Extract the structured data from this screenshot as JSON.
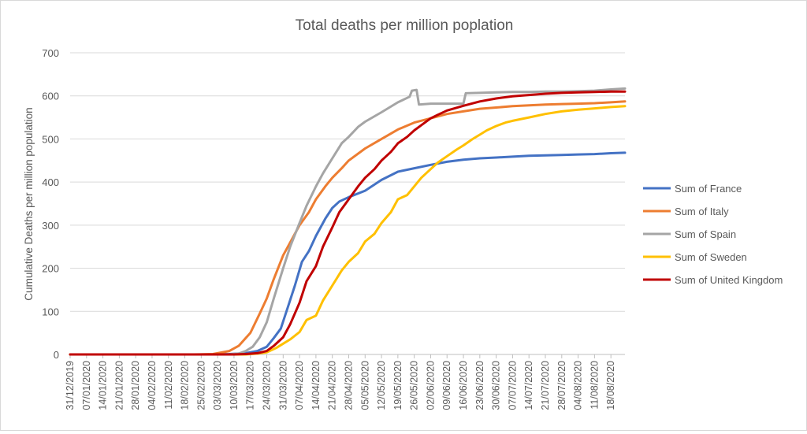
{
  "chart_data": {
    "type": "line",
    "title": "Total deaths per million poplation",
    "xlabel": "",
    "ylabel": "Cumulative Deaths per million population",
    "ylim": [
      0,
      700
    ],
    "yticks": [
      0,
      100,
      200,
      300,
      400,
      500,
      600,
      700
    ],
    "grid": "horizontal",
    "legend_position": "right",
    "x_dates": [
      "31/12/2019",
      "07/01/2020",
      "14/01/2020",
      "21/01/2020",
      "28/01/2020",
      "04/02/2020",
      "11/02/2020",
      "18/02/2020",
      "25/02/2020",
      "03/03/2020",
      "10/03/2020",
      "17/03/2020",
      "24/03/2020",
      "31/03/2020",
      "07/04/2020",
      "14/04/2020",
      "21/04/2020",
      "28/04/2020",
      "05/05/2020",
      "12/05/2020",
      "19/05/2020",
      "26/05/2020",
      "02/06/2020",
      "09/06/2020",
      "16/06/2020",
      "23/06/2020",
      "30/06/2020",
      "07/07/2020",
      "14/07/2020",
      "21/07/2020",
      "28/07/2020",
      "04/08/2020",
      "11/08/2020",
      "18/08/2020"
    ],
    "x_end": "24/08/2020",
    "series": [
      {
        "name": "Sum of France",
        "color": "#4472c4",
        "points": [
          [
            "31/12/2019",
            0
          ],
          [
            "01/03/2020",
            0
          ],
          [
            "08/03/2020",
            1
          ],
          [
            "15/03/2020",
            3
          ],
          [
            "20/03/2020",
            8
          ],
          [
            "24/03/2020",
            18
          ],
          [
            "27/03/2020",
            38
          ],
          [
            "30/03/2020",
            60
          ],
          [
            "02/04/2020",
            110
          ],
          [
            "05/04/2020",
            160
          ],
          [
            "08/04/2020",
            215
          ],
          [
            "11/04/2020",
            240
          ],
          [
            "14/04/2020",
            275
          ],
          [
            "18/04/2020",
            315
          ],
          [
            "21/04/2020",
            340
          ],
          [
            "24/04/2020",
            355
          ],
          [
            "28/04/2020",
            365
          ],
          [
            "05/05/2020",
            380
          ],
          [
            "12/05/2020",
            405
          ],
          [
            "19/05/2020",
            424
          ],
          [
            "26/05/2020",
            432
          ],
          [
            "02/06/2020",
            440
          ],
          [
            "09/06/2020",
            447
          ],
          [
            "16/06/2020",
            452
          ],
          [
            "23/06/2020",
            455
          ],
          [
            "30/06/2020",
            457
          ],
          [
            "07/07/2020",
            459
          ],
          [
            "14/07/2020",
            461
          ],
          [
            "21/07/2020",
            462
          ],
          [
            "28/07/2020",
            463
          ],
          [
            "04/08/2020",
            464
          ],
          [
            "11/08/2020",
            465
          ],
          [
            "18/08/2020",
            467
          ],
          [
            "24/08/2020",
            468
          ]
        ]
      },
      {
        "name": "Sum of Italy",
        "color": "#ed7d31",
        "points": [
          [
            "31/12/2019",
            0
          ],
          [
            "22/02/2020",
            0
          ],
          [
            "01/03/2020",
            1
          ],
          [
            "08/03/2020",
            8
          ],
          [
            "12/03/2020",
            20
          ],
          [
            "17/03/2020",
            50
          ],
          [
            "21/03/2020",
            95
          ],
          [
            "24/03/2020",
            130
          ],
          [
            "27/03/2020",
            175
          ],
          [
            "31/03/2020",
            230
          ],
          [
            "04/04/2020",
            270
          ],
          [
            "07/04/2020",
            300
          ],
          [
            "11/04/2020",
            330
          ],
          [
            "14/04/2020",
            360
          ],
          [
            "18/04/2020",
            390
          ],
          [
            "21/04/2020",
            410
          ],
          [
            "25/04/2020",
            432
          ],
          [
            "28/04/2020",
            450
          ],
          [
            "05/05/2020",
            478
          ],
          [
            "12/05/2020",
            500
          ],
          [
            "19/05/2020",
            522
          ],
          [
            "26/05/2020",
            538
          ],
          [
            "02/06/2020",
            548
          ],
          [
            "09/06/2020",
            558
          ],
          [
            "16/06/2020",
            564
          ],
          [
            "23/06/2020",
            570
          ],
          [
            "30/06/2020",
            573
          ],
          [
            "07/07/2020",
            576
          ],
          [
            "14/07/2020",
            578
          ],
          [
            "21/07/2020",
            580
          ],
          [
            "28/07/2020",
            581
          ],
          [
            "04/08/2020",
            582
          ],
          [
            "11/08/2020",
            583
          ],
          [
            "18/08/2020",
            585
          ],
          [
            "24/08/2020",
            587
          ]
        ]
      },
      {
        "name": "Sum of Spain",
        "color": "#a5a5a5",
        "points": [
          [
            "31/12/2019",
            0
          ],
          [
            "08/03/2020",
            0
          ],
          [
            "12/03/2020",
            2
          ],
          [
            "15/03/2020",
            8
          ],
          [
            "18/03/2020",
            18
          ],
          [
            "21/03/2020",
            40
          ],
          [
            "24/03/2020",
            75
          ],
          [
            "27/03/2020",
            130
          ],
          [
            "31/03/2020",
            200
          ],
          [
            "03/04/2020",
            250
          ],
          [
            "07/04/2020",
            305
          ],
          [
            "10/04/2020",
            345
          ],
          [
            "14/04/2020",
            390
          ],
          [
            "17/04/2020",
            420
          ],
          [
            "21/04/2020",
            455
          ],
          [
            "25/04/2020",
            490
          ],
          [
            "28/04/2020",
            505
          ],
          [
            "02/05/2020",
            528
          ],
          [
            "05/05/2020",
            540
          ],
          [
            "12/05/2020",
            562
          ],
          [
            "19/05/2020",
            585
          ],
          [
            "24/05/2020",
            598
          ],
          [
            "25/05/2020",
            612
          ],
          [
            "27/05/2020",
            614
          ],
          [
            "28/05/2020",
            580
          ],
          [
            "02/06/2020",
            582
          ],
          [
            "09/06/2020",
            582
          ],
          [
            "16/06/2020",
            582
          ],
          [
            "17/06/2020",
            606
          ],
          [
            "23/06/2020",
            607
          ],
          [
            "30/06/2020",
            608
          ],
          [
            "07/07/2020",
            609
          ],
          [
            "14/07/2020",
            609
          ],
          [
            "21/07/2020",
            610
          ],
          [
            "28/07/2020",
            610
          ],
          [
            "04/08/2020",
            611
          ],
          [
            "11/08/2020",
            612
          ],
          [
            "18/08/2020",
            615
          ],
          [
            "24/08/2020",
            617
          ]
        ]
      },
      {
        "name": "Sum of Sweden",
        "color": "#ffc000",
        "points": [
          [
            "31/12/2019",
            0
          ],
          [
            "15/03/2020",
            0
          ],
          [
            "20/03/2020",
            2
          ],
          [
            "24/03/2020",
            5
          ],
          [
            "28/03/2020",
            15
          ],
          [
            "31/03/2020",
            25
          ],
          [
            "03/04/2020",
            35
          ],
          [
            "07/04/2020",
            52
          ],
          [
            "10/04/2020",
            80
          ],
          [
            "14/04/2020",
            90
          ],
          [
            "17/04/2020",
            125
          ],
          [
            "21/04/2020",
            160
          ],
          [
            "25/04/2020",
            195
          ],
          [
            "28/04/2020",
            215
          ],
          [
            "02/05/2020",
            235
          ],
          [
            "05/05/2020",
            262
          ],
          [
            "09/05/2020",
            280
          ],
          [
            "12/05/2020",
            305
          ],
          [
            "16/05/2020",
            330
          ],
          [
            "19/05/2020",
            360
          ],
          [
            "23/05/2020",
            370
          ],
          [
            "26/05/2020",
            390
          ],
          [
            "29/05/2020",
            410
          ],
          [
            "02/06/2020",
            430
          ],
          [
            "05/06/2020",
            445
          ],
          [
            "09/06/2020",
            460
          ],
          [
            "13/06/2020",
            475
          ],
          [
            "16/06/2020",
            485
          ],
          [
            "20/06/2020",
            500
          ],
          [
            "23/06/2020",
            510
          ],
          [
            "26/06/2020",
            520
          ],
          [
            "30/06/2020",
            530
          ],
          [
            "04/07/2020",
            538
          ],
          [
            "07/07/2020",
            542
          ],
          [
            "14/07/2020",
            550
          ],
          [
            "21/07/2020",
            558
          ],
          [
            "28/07/2020",
            564
          ],
          [
            "04/08/2020",
            568
          ],
          [
            "11/08/2020",
            571
          ],
          [
            "18/08/2020",
            574
          ],
          [
            "24/08/2020",
            576
          ]
        ]
      },
      {
        "name": "Sum of United Kingdom",
        "color": "#c00000",
        "points": [
          [
            "31/12/2019",
            0
          ],
          [
            "10/03/2020",
            0
          ],
          [
            "15/03/2020",
            1
          ],
          [
            "20/03/2020",
            3
          ],
          [
            "24/03/2020",
            8
          ],
          [
            "27/03/2020",
            20
          ],
          [
            "31/03/2020",
            40
          ],
          [
            "03/04/2020",
            70
          ],
          [
            "07/04/2020",
            120
          ],
          [
            "10/04/2020",
            170
          ],
          [
            "14/04/2020",
            205
          ],
          [
            "17/04/2020",
            250
          ],
          [
            "21/04/2020",
            295
          ],
          [
            "24/04/2020",
            330
          ],
          [
            "28/04/2020",
            360
          ],
          [
            "02/05/2020",
            390
          ],
          [
            "05/05/2020",
            410
          ],
          [
            "09/05/2020",
            430
          ],
          [
            "12/05/2020",
            450
          ],
          [
            "16/05/2020",
            470
          ],
          [
            "19/05/2020",
            490
          ],
          [
            "23/05/2020",
            505
          ],
          [
            "26/05/2020",
            520
          ],
          [
            "29/05/2020",
            532
          ],
          [
            "02/06/2020",
            548
          ],
          [
            "05/06/2020",
            556
          ],
          [
            "09/06/2020",
            566
          ],
          [
            "16/06/2020",
            577
          ],
          [
            "23/06/2020",
            587
          ],
          [
            "30/06/2020",
            594
          ],
          [
            "07/07/2020",
            599
          ],
          [
            "14/07/2020",
            602
          ],
          [
            "21/07/2020",
            605
          ],
          [
            "28/07/2020",
            607
          ],
          [
            "04/08/2020",
            608
          ],
          [
            "11/08/2020",
            609
          ],
          [
            "18/08/2020",
            610
          ],
          [
            "24/08/2020",
            610
          ]
        ]
      }
    ]
  }
}
